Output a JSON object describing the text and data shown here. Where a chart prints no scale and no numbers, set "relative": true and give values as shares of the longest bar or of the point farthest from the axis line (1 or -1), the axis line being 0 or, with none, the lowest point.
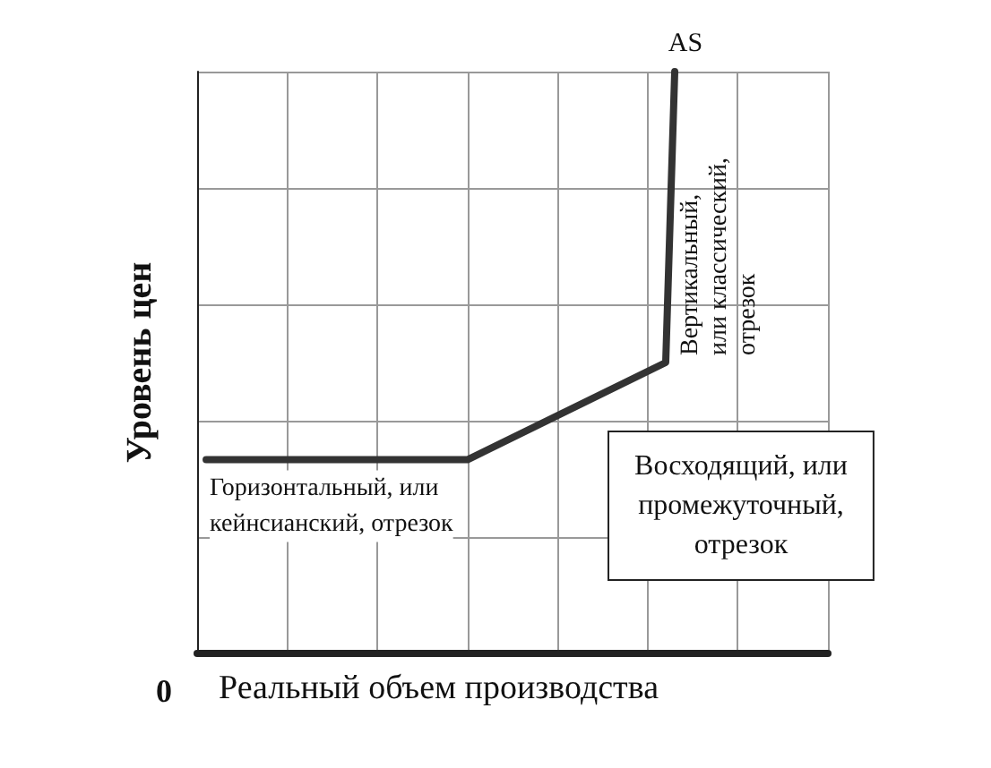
{
  "chart_data": {
    "type": "line",
    "relative": true,
    "ylabel": "Уровень цен",
    "xlabel": "Реальный объем производства",
    "categories": [
      null,
      null,
      null,
      null,
      null,
      null,
      null,
      null,
      null,
      null,
      null,
      null,
      null,
      null,
      null,
      null,
      null,
      null,
      null,
      null,
      null,
      null,
      null,
      null,
      null,
      null,
      null,
      null,
      null,
      null,
      null,
      null,
      null,
      null,
      null,
      null,
      null,
      null,
      null,
      null,
      null,
      null,
      null,
      null,
      null,
      null,
      null,
      null,
      null,
      null,
      null,
      null,
      null,
      null,
      null,
      null,
      null,
      null,
      null,
      null,
      null,
      null,
      null,
      null,
      null,
      null,
      null,
      null,
      null,
      null,
      null
    ],
    "series": [
      {
        "name": "AS",
        "color": "#333333",
        "values": [
          null,
          0.333,
          null,
          null,
          null,
          null,
          null,
          null,
          null,
          null,
          null,
          null,
          null,
          null,
          null,
          null,
          null,
          null,
          null,
          null,
          null,
          null,
          null,
          null,
          null,
          null,
          null,
          null,
          null,
          null,
          0.333,
          null,
          null,
          null,
          null,
          null,
          null,
          null,
          null,
          null,
          null,
          null,
          null,
          null,
          null,
          null,
          null,
          null,
          null,
          null,
          null,
          null,
          0.5,
          1,
          null,
          null,
          null,
          null,
          null,
          null,
          null,
          null,
          null,
          null,
          null,
          null,
          null,
          null,
          null,
          null,
          null
        ]
      }
    ],
    "annotations": [
      "0",
      "Горизонтальный, или\nкейнсианский, отрезок",
      "Восходящий, или\nпромежуточный,\nотрезок",
      "Вертикальный,\nили классический,\nотрезок"
    ],
    "grid": true,
    "marker": "none",
    "line_style": "solid",
    "legend": false
  }
}
